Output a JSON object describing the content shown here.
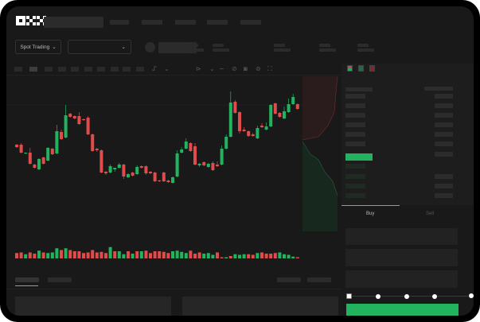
{
  "header": {
    "logo": "OKX",
    "nav_items": [
      "",
      "",
      "",
      "",
      ""
    ]
  },
  "market_bar": {
    "mode_select": "Spot Trading",
    "pair_select": ""
  },
  "toolbar": {
    "icons": [
      "indicator-icon",
      "chevron-down-icon",
      "drawing-icon",
      "chevron-down-icon",
      "line-icon",
      "ruler-icon",
      "camera-icon",
      "settings-icon",
      "fullscreen-icon"
    ]
  },
  "orderbook": {
    "view_icons": [
      "both-sides-icon",
      "bids-only-icon",
      "asks-only-icon"
    ]
  },
  "trade_panel": {
    "tabs": [
      "Buy",
      "Sell"
    ],
    "active_tab": "Buy",
    "slider_percent": 0,
    "slider_stops": [
      0,
      25,
      50,
      75,
      100
    ]
  },
  "colors": {
    "up": "#22b35e",
    "down": "#e04b4b",
    "background": "#191919"
  },
  "chart_data": {
    "type": "candlestick",
    "candles": [
      [
        68,
        69,
        64,
        65
      ],
      [
        68,
        70,
        57,
        58
      ],
      [
        57,
        58,
        56,
        58
      ],
      [
        58,
        64,
        43,
        44
      ],
      [
        43,
        44,
        38,
        39
      ],
      [
        37,
        51,
        36,
        50
      ],
      [
        52,
        53,
        43,
        44
      ],
      [
        48,
        65,
        47,
        64
      ],
      [
        63,
        64,
        55,
        56
      ],
      [
        57,
        93,
        56,
        85
      ],
      [
        84,
        87,
        74,
        75
      ],
      [
        77,
        118,
        76,
        105
      ],
      [
        107,
        108,
        102,
        103
      ],
      [
        104,
        105,
        100,
        101
      ],
      [
        104,
        109,
        93,
        94
      ],
      [
        100,
        101,
        98,
        99
      ],
      [
        102,
        104,
        80,
        81
      ],
      [
        81,
        82,
        59,
        60
      ],
      [
        63,
        64,
        59,
        61
      ],
      [
        61,
        62,
        32,
        33
      ],
      [
        34,
        35,
        30,
        32
      ],
      [
        33,
        43,
        32,
        41
      ],
      [
        37,
        39,
        34,
        39
      ],
      [
        39,
        45,
        38,
        43
      ],
      [
        43,
        44,
        25,
        28
      ],
      [
        27,
        32,
        26,
        31
      ],
      [
        33,
        34,
        28,
        29
      ],
      [
        31,
        42,
        30,
        40
      ],
      [
        41,
        42,
        38,
        39
      ],
      [
        41,
        42,
        30,
        32
      ],
      [
        34,
        35,
        31,
        32
      ],
      [
        33,
        34,
        21,
        22
      ],
      [
        23,
        24,
        21,
        22
      ],
      [
        33,
        34,
        21,
        22
      ],
      [
        23,
        24,
        20,
        21
      ],
      [
        20,
        28,
        19,
        27
      ],
      [
        28,
        61,
        27,
        57
      ],
      [
        58,
        65,
        57,
        62
      ],
      [
        63,
        76,
        62,
        72
      ],
      [
        70,
        71,
        59,
        60
      ],
      [
        66,
        70,
        42,
        43
      ],
      [
        42,
        45,
        40,
        44
      ],
      [
        46,
        47,
        41,
        42
      ],
      [
        40,
        45,
        39,
        44
      ],
      [
        45,
        47,
        35,
        36
      ],
      [
        43,
        47,
        40,
        41
      ],
      [
        43,
        67,
        42,
        63
      ],
      [
        63,
        81,
        62,
        78
      ],
      [
        78,
        135,
        77,
        121
      ],
      [
        122,
        124,
        107,
        108
      ],
      [
        109,
        110,
        82,
        85
      ],
      [
        87,
        90,
        84,
        85
      ],
      [
        85,
        86,
        78,
        79
      ],
      [
        81,
        83,
        78,
        79
      ],
      [
        76,
        92,
        75,
        89
      ],
      [
        92,
        95,
        89,
        90
      ],
      [
        87,
        96,
        86,
        91
      ],
      [
        91,
        119,
        90,
        118
      ],
      [
        120,
        121,
        106,
        107
      ],
      [
        108,
        109,
        102,
        103
      ],
      [
        101,
        116,
        100,
        110
      ],
      [
        109,
        126,
        108,
        119
      ],
      [
        119,
        132,
        118,
        128
      ],
      [
        119,
        120,
        112,
        113
      ]
    ],
    "volume": [
      [
        "r",
        9
      ],
      [
        "r",
        10
      ],
      [
        "g",
        7
      ],
      [
        "r",
        10
      ],
      [
        "r",
        8
      ],
      [
        "g",
        13
      ],
      [
        "r",
        10
      ],
      [
        "g",
        9
      ],
      [
        "g",
        10
      ],
      [
        "g",
        17
      ],
      [
        "r",
        14
      ],
      [
        "g",
        17
      ],
      [
        "r",
        14
      ],
      [
        "r",
        12
      ],
      [
        "r",
        12
      ],
      [
        "r",
        9
      ],
      [
        "r",
        10
      ],
      [
        "r",
        14
      ],
      [
        "r",
        10
      ],
      [
        "r",
        11
      ],
      [
        "r",
        9
      ],
      [
        "g",
        19
      ],
      [
        "r",
        12
      ],
      [
        "g",
        12
      ],
      [
        "g",
        7
      ],
      [
        "r",
        12
      ],
      [
        "g",
        8
      ],
      [
        "r",
        12
      ],
      [
        "g",
        12
      ],
      [
        "r",
        13
      ],
      [
        "r",
        9
      ],
      [
        "r",
        12
      ],
      [
        "r",
        12
      ],
      [
        "r",
        11
      ],
      [
        "r",
        9
      ],
      [
        "g",
        12
      ],
      [
        "g",
        13
      ],
      [
        "g",
        11
      ],
      [
        "g",
        9
      ],
      [
        "r",
        13
      ],
      [
        "r",
        8
      ],
      [
        "r",
        10
      ],
      [
        "g",
        8
      ],
      [
        "g",
        9
      ],
      [
        "g",
        6
      ],
      [
        "r",
        10
      ],
      [
        "r",
        2
      ],
      [
        "g",
        2
      ],
      [
        "r",
        4
      ],
      [
        "g",
        7
      ],
      [
        "g",
        6
      ],
      [
        "g",
        7
      ],
      [
        "r",
        7
      ],
      [
        "r",
        6
      ],
      [
        "g",
        9
      ],
      [
        "r",
        10
      ],
      [
        "r",
        8
      ],
      [
        "r",
        8
      ],
      [
        "r",
        9
      ],
      [
        "g",
        10
      ],
      [
        "g",
        7
      ],
      [
        "g",
        6
      ],
      [
        "g",
        3
      ],
      [
        "r",
        2
      ]
    ]
  }
}
